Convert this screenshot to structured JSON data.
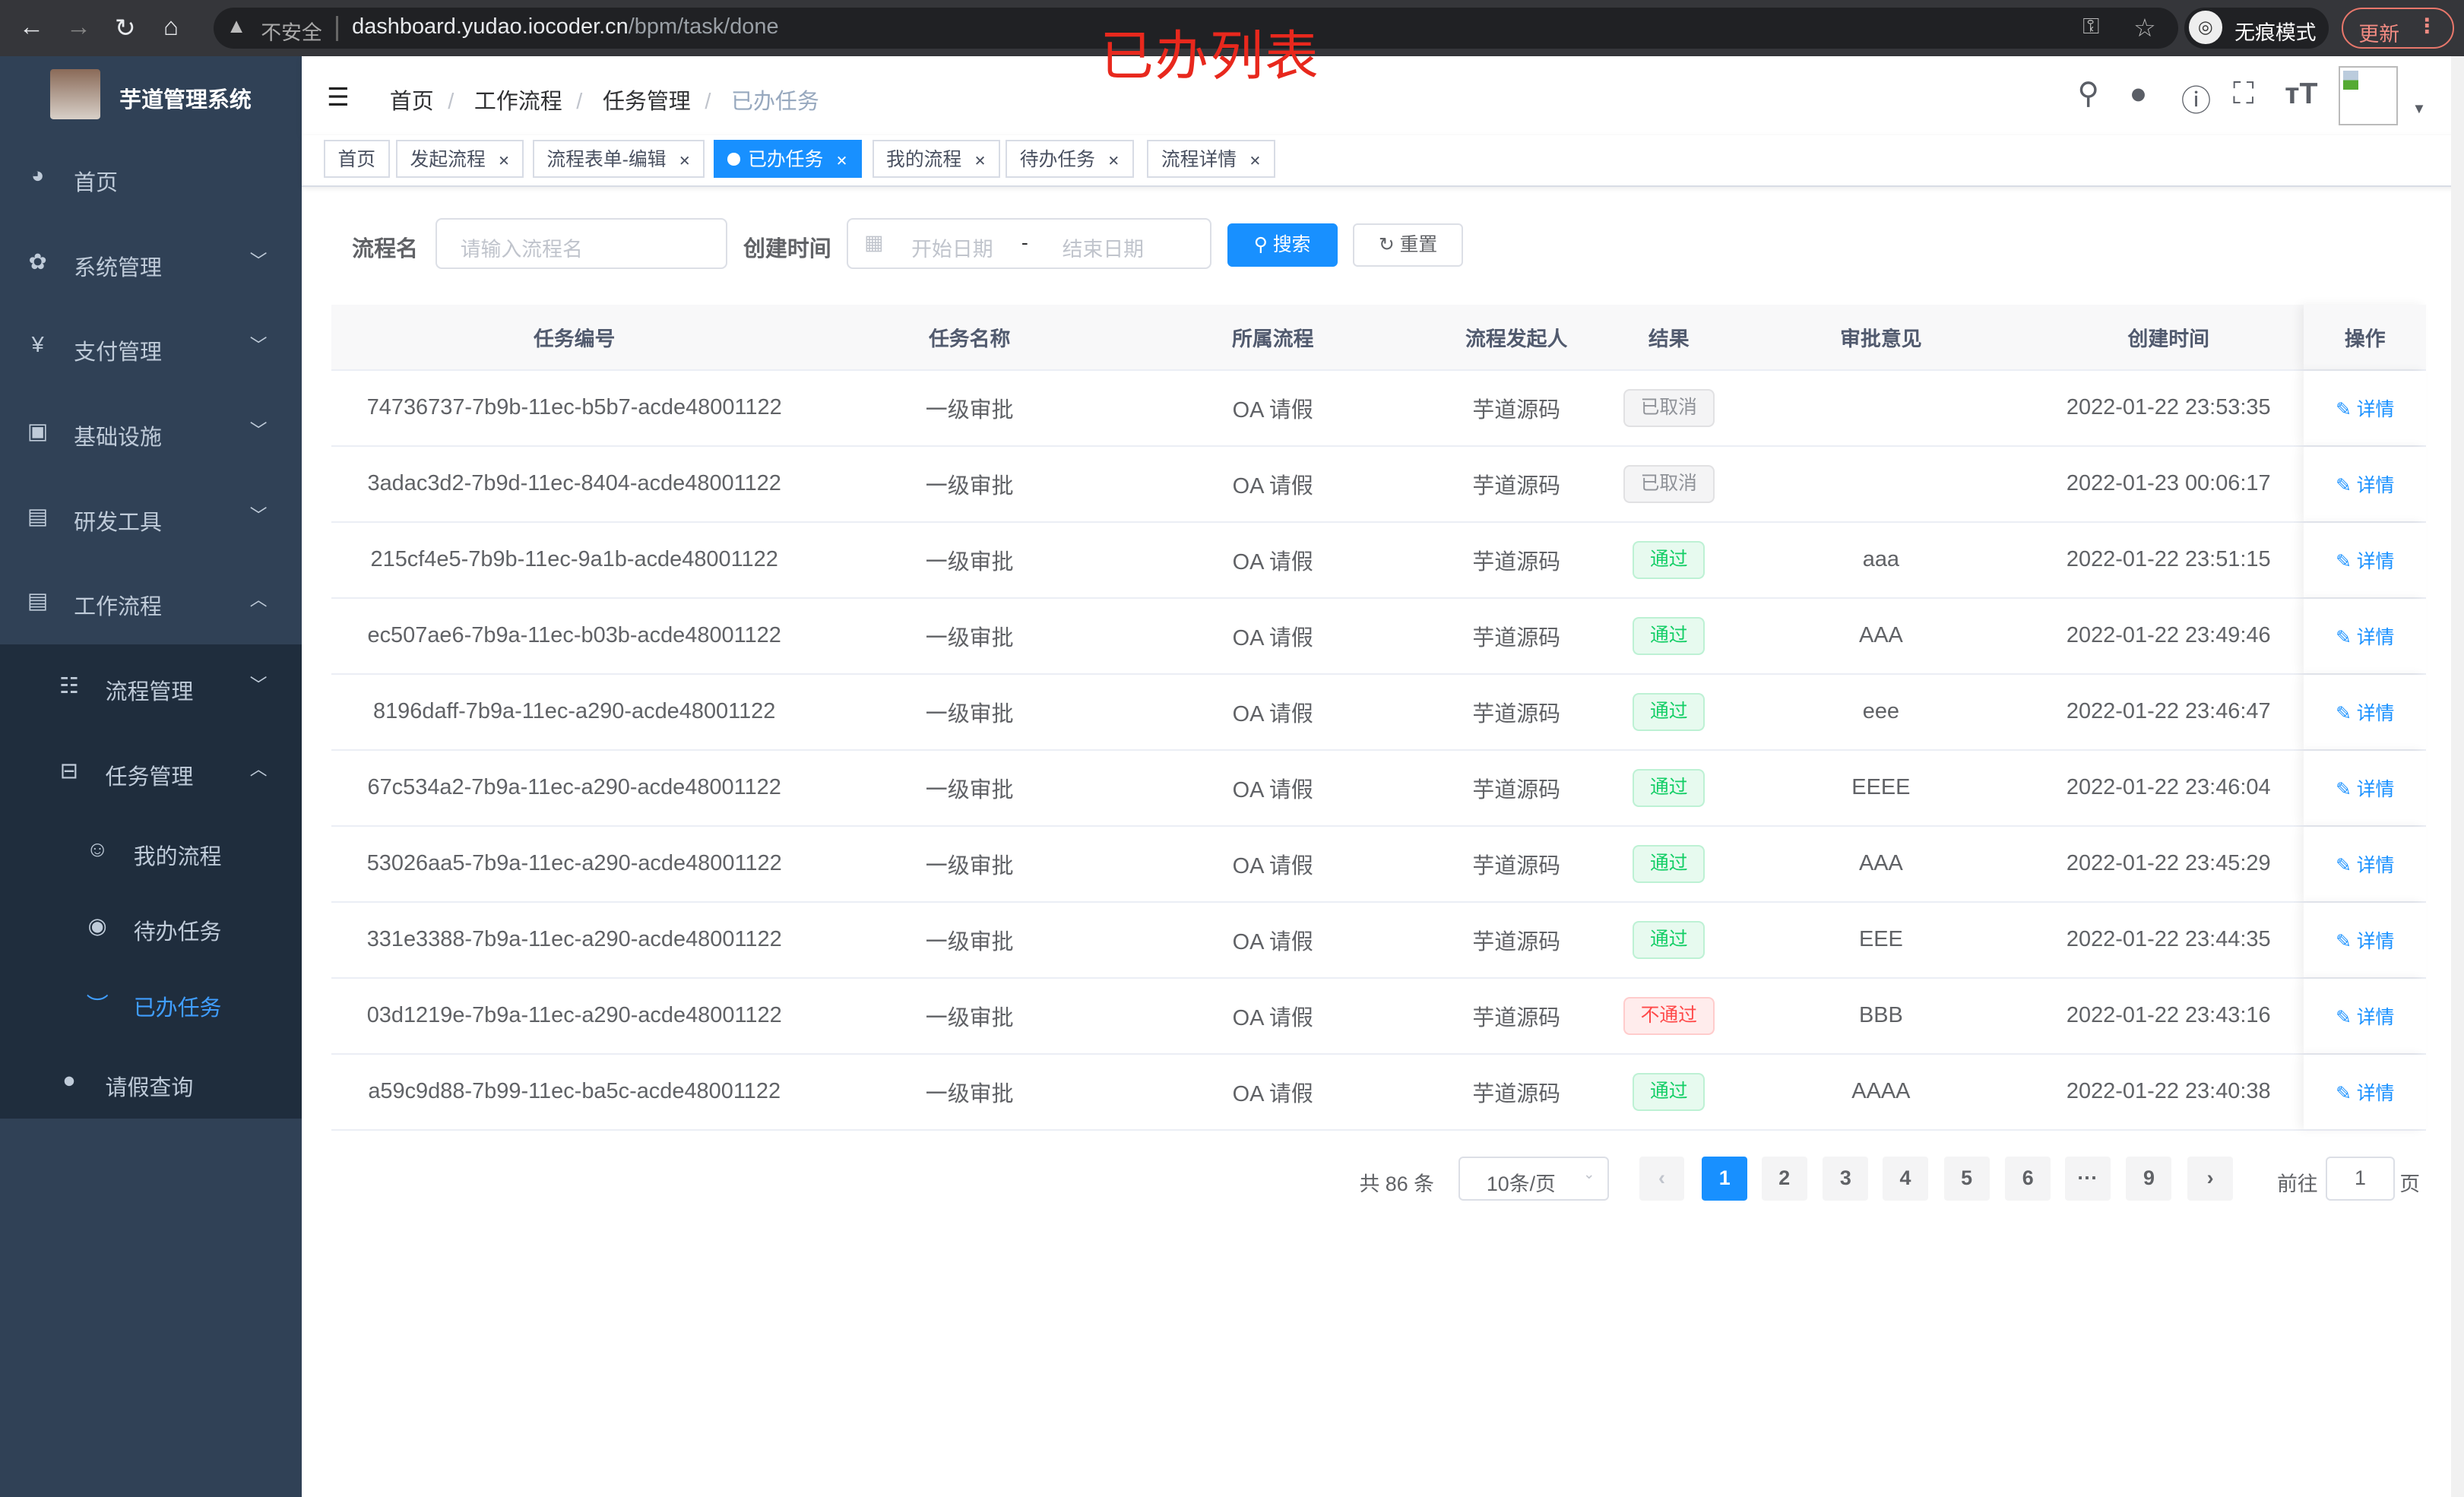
{
  "browser": {
    "insecure": "不安全",
    "url_host": "dashboard.yudao.iocoder.cn",
    "url_path": "/bpm/task/done",
    "incognito": "无痕模式",
    "update": "更新"
  },
  "overlay_title": "已办列表",
  "sidebar": {
    "title": "芋道管理系统",
    "items": [
      {
        "label": "首页",
        "icon": "dashboard-icon"
      },
      {
        "label": "系统管理",
        "icon": "gear-icon",
        "arrow": "down"
      },
      {
        "label": "支付管理",
        "icon": "yen-icon",
        "arrow": "down"
      },
      {
        "label": "基础设施",
        "icon": "monitor-icon",
        "arrow": "down"
      },
      {
        "label": "研发工具",
        "icon": "toolbox-icon",
        "arrow": "down"
      },
      {
        "label": "工作流程",
        "icon": "toolbox-icon",
        "arrow": "up"
      },
      {
        "label": "流程管理",
        "icon": "list-icon",
        "arrow": "down"
      },
      {
        "label": "任务管理",
        "icon": "tree-icon",
        "arrow": "up"
      },
      {
        "label": "我的流程",
        "icon": "people-icon"
      },
      {
        "label": "待办任务",
        "icon": "eye-icon"
      },
      {
        "label": "已办任务",
        "icon": "eye-closed-icon",
        "active": true
      },
      {
        "label": "请假查询",
        "icon": "user-icon"
      }
    ]
  },
  "breadcrumb": [
    "首页",
    "工作流程",
    "任务管理",
    "已办任务"
  ],
  "tags": [
    {
      "label": "首页"
    },
    {
      "label": "发起流程"
    },
    {
      "label": "流程表单-编辑"
    },
    {
      "label": "已办任务",
      "active": true
    },
    {
      "label": "我的流程"
    },
    {
      "label": "待办任务"
    },
    {
      "label": "流程详情"
    }
  ],
  "search": {
    "name_label": "流程名",
    "name_placeholder": "请输入流程名",
    "time_label": "创建时间",
    "start_placeholder": "开始日期",
    "range_sep": "-",
    "end_placeholder": "结束日期",
    "search_btn": "搜索",
    "reset_btn": "重置"
  },
  "table": {
    "headers": [
      "任务编号",
      "任务名称",
      "所属流程",
      "流程发起人",
      "结果",
      "审批意见",
      "创建时间",
      "操作"
    ],
    "rows": [
      [
        "74736737-7b9b-11ec-b5b7-acde48001122",
        "一级审批",
        "OA 请假",
        "芋道源码",
        "已取消",
        "",
        "2022-01-22 23:53:35",
        "详情"
      ],
      [
        "3adac3d2-7b9d-11ec-8404-acde48001122",
        "一级审批",
        "OA 请假",
        "芋道源码",
        "已取消",
        "",
        "2022-01-23 00:06:17",
        "详情"
      ],
      [
        "215cf4e5-7b9b-11ec-9a1b-acde48001122",
        "一级审批",
        "OA 请假",
        "芋道源码",
        "通过",
        "aaa",
        "2022-01-22 23:51:15",
        "详情"
      ],
      [
        "ec507ae6-7b9a-11ec-b03b-acde48001122",
        "一级审批",
        "OA 请假",
        "芋道源码",
        "通过",
        "AAA",
        "2022-01-22 23:49:46",
        "详情"
      ],
      [
        "8196daff-7b9a-11ec-a290-acde48001122",
        "一级审批",
        "OA 请假",
        "芋道源码",
        "通过",
        "eee",
        "2022-01-22 23:46:47",
        "详情"
      ],
      [
        "67c534a2-7b9a-11ec-a290-acde48001122",
        "一级审批",
        "OA 请假",
        "芋道源码",
        "通过",
        "EEEE",
        "2022-01-22 23:46:04",
        "详情"
      ],
      [
        "53026aa5-7b9a-11ec-a290-acde48001122",
        "一级审批",
        "OA 请假",
        "芋道源码",
        "通过",
        "AAA",
        "2022-01-22 23:45:29",
        "详情"
      ],
      [
        "331e3388-7b9a-11ec-a290-acde48001122",
        "一级审批",
        "OA 请假",
        "芋道源码",
        "通过",
        "EEE",
        "2022-01-22 23:44:35",
        "详情"
      ],
      [
        "03d1219e-7b9a-11ec-a290-acde48001122",
        "一级审批",
        "OA 请假",
        "芋道源码",
        "不通过",
        "BBB",
        "2022-01-22 23:43:16",
        "详情"
      ],
      [
        "a59c9d88-7b99-11ec-ba5c-acde48001122",
        "一级审批",
        "OA 请假",
        "芋道源码",
        "通过",
        "AAAA",
        "2022-01-22 23:40:38",
        "详情"
      ]
    ]
  },
  "status_colors": {
    "已取消": "#909399",
    "通过": "#13ce66",
    "不通过": "#ff4949"
  },
  "pagination": {
    "total": "共 86 条",
    "page_size": "10条/页",
    "pages": [
      "1",
      "2",
      "3",
      "4",
      "5",
      "6",
      "···",
      "9"
    ],
    "current": "1",
    "goto_label": "前往",
    "goto_value": "1",
    "page_unit": "页"
  }
}
